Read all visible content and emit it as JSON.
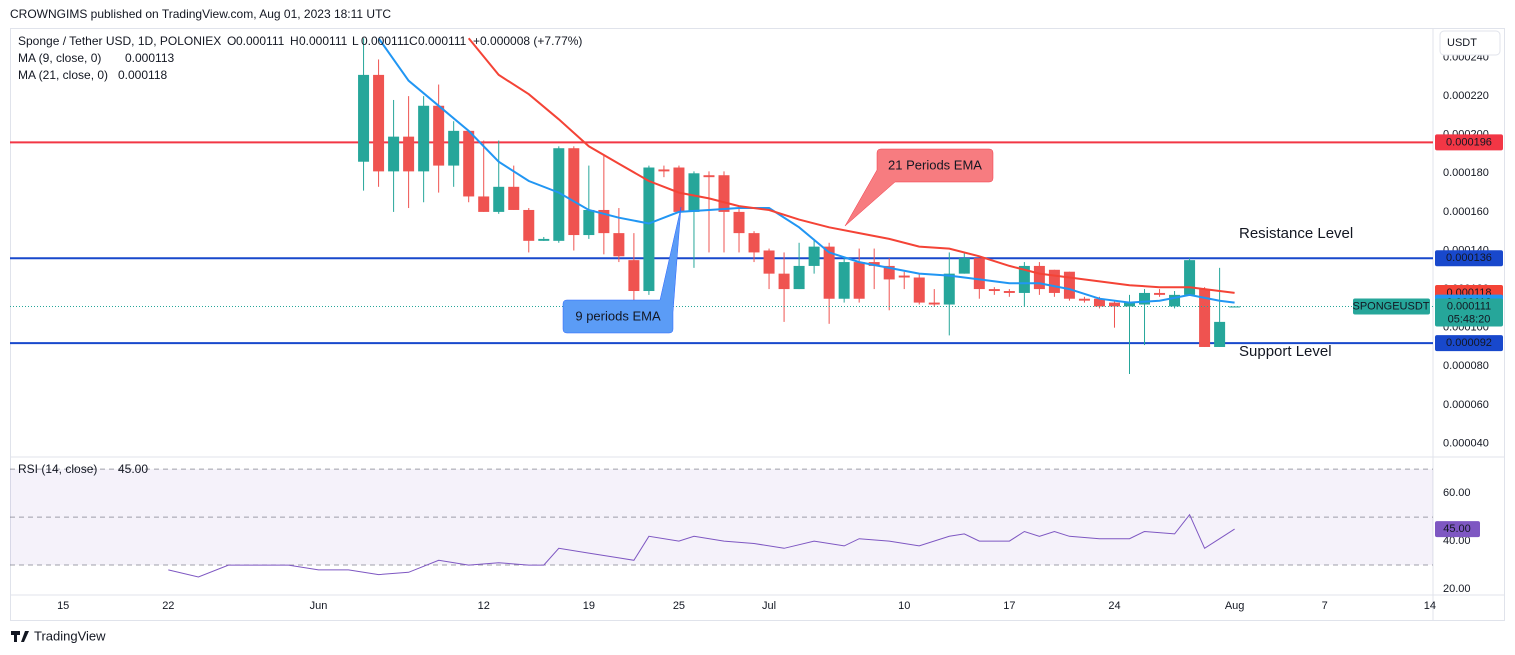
{
  "header": "CROWNGIMS published on TradingView.com, Aug 01, 2023 18:11 UTC",
  "footer": "TradingView",
  "currency_button": "USDT",
  "chart_data": [
    {
      "type": "candlestick",
      "title": "Sponge / Tether USD, 1D, POLONIEX",
      "ohlc_letters": [
        "O",
        "H",
        "L",
        "C"
      ],
      "change": "+0.000008 (+7.77%)",
      "up_color": "#26a69a",
      "down_color": "#ef5350",
      "x": [
        "2023-06-04",
        "2023-06-05",
        "2023-06-06",
        "2023-06-07",
        "2023-06-08",
        "2023-06-09",
        "2023-06-10",
        "2023-06-11",
        "2023-06-12",
        "2023-06-13",
        "2023-06-14",
        "2023-06-15",
        "2023-06-16",
        "2023-06-17",
        "2023-06-18",
        "2023-06-19",
        "2023-06-20",
        "2023-06-21",
        "2023-06-22",
        "2023-06-23",
        "2023-06-24",
        "2023-06-25",
        "2023-06-26",
        "2023-06-27",
        "2023-06-28",
        "2023-06-29",
        "2023-06-30",
        "2023-07-01",
        "2023-07-02",
        "2023-07-03",
        "2023-07-04",
        "2023-07-05",
        "2023-07-06",
        "2023-07-07",
        "2023-07-08",
        "2023-07-09",
        "2023-07-10",
        "2023-07-11",
        "2023-07-12",
        "2023-07-13",
        "2023-07-14",
        "2023-07-15",
        "2023-07-16",
        "2023-07-17",
        "2023-07-18",
        "2023-07-19",
        "2023-07-20",
        "2023-07-21",
        "2023-07-22",
        "2023-07-23",
        "2023-07-24",
        "2023-07-25",
        "2023-07-26",
        "2023-07-27",
        "2023-07-28",
        "2023-07-29",
        "2023-07-30",
        "2023-07-31",
        "2023-08-01"
      ],
      "open": [
        0.000186,
        0.000231,
        0.000181,
        0.000199,
        0.000181,
        0.000215,
        0.000184,
        0.000202,
        0.000168,
        0.00016,
        0.000173,
        0.000161,
        0.000145,
        0.000145,
        0.000193,
        0.000148,
        0.000161,
        0.000149,
        0.000135,
        0.000119,
        0.000182,
        0.000183,
        0.00016,
        0.000179,
        0.000179,
        0.00016,
        0.000149,
        0.00014,
        0.000128,
        0.00012,
        0.000132,
        0.000142,
        0.000115,
        0.000134,
        0.000134,
        0.000132,
        0.000127,
        0.000126,
        0.000113,
        0.000112,
        0.000128,
        0.000136,
        0.00012,
        0.000119,
        0.000118,
        0.000132,
        0.00013,
        0.000129,
        0.000115,
        0.000115,
        0.000113,
        0.000111,
        0.000112,
        0.000118,
        0.000111,
        0.000117,
        0.00012,
        9e-05,
        0.000111
      ],
      "high": [
        0.00025,
        0.000239,
        0.000218,
        0.00022,
        0.00022,
        0.000226,
        0.000207,
        0.000202,
        0.000197,
        0.000197,
        0.000184,
        0.000162,
        0.000147,
        0.000194,
        0.000194,
        0.000184,
        0.000189,
        0.000162,
        0.000149,
        0.000184,
        0.000184,
        0.000184,
        0.000181,
        0.000181,
        0.000181,
        0.000162,
        0.00015,
        0.000141,
        0.000139,
        0.000144,
        0.000146,
        0.000144,
        0.000136,
        0.000141,
        0.000141,
        0.000136,
        0.000129,
        0.000128,
        0.00012,
        0.000139,
        0.000139,
        0.000136,
        0.000121,
        0.00012,
        0.000134,
        0.000134,
        0.00013,
        0.000129,
        0.000116,
        0.000116,
        0.000114,
        0.000117,
        0.00012,
        0.00012,
        0.000119,
        0.000136,
        0.000121,
        0.000131,
        0.000111
      ],
      "low": [
        0.000171,
        0.000173,
        0.00016,
        0.000162,
        0.000165,
        0.00017,
        0.000173,
        0.000165,
        0.00016,
        0.000159,
        0.000161,
        0.000139,
        0.000145,
        0.000144,
        0.00014,
        0.000146,
        0.000138,
        0.000134,
        0.000113,
        0.000117,
        0.000178,
        0.00016,
        0.000131,
        0.000139,
        0.000139,
        0.000139,
        0.000134,
        0.00012,
        0.000103,
        0.00012,
        0.000128,
        0.000102,
        0.000113,
        0.000113,
        0.00012,
        0.000109,
        0.00012,
        0.000112,
        0.000111,
        9.6e-05,
        0.000128,
        0.000115,
        0.000117,
        0.000116,
        0.000111,
        0.000117,
        0.000116,
        0.000114,
        0.000113,
        0.00011,
        0.0001,
        7.6e-05,
        9.1e-05,
        0.000116,
        0.00011,
        0.000117,
        9e-05,
        9e-05,
        0.000111
      ],
      "close": [
        0.000231,
        0.000181,
        0.000199,
        0.000181,
        0.000215,
        0.000184,
        0.000202,
        0.000168,
        0.00016,
        0.000173,
        0.000161,
        0.000145,
        0.000146,
        0.000193,
        0.000148,
        0.000161,
        0.000149,
        0.000137,
        0.000119,
        0.000183,
        0.000181,
        0.00016,
        0.00018,
        0.000178,
        0.00016,
        0.000149,
        0.000139,
        0.000128,
        0.00012,
        0.000132,
        0.000142,
        0.000115,
        0.000134,
        0.000115,
        0.000132,
        0.000125,
        0.000126,
        0.000113,
        0.000112,
        0.000128,
        0.000136,
        0.00012,
        0.000119,
        0.000118,
        0.000132,
        0.00012,
        0.000118,
        0.000115,
        0.000114,
        0.000111,
        0.000111,
        0.000113,
        0.000118,
        0.000117,
        0.000117,
        0.000135,
        9e-05,
        0.000103,
        0.000111
      ],
      "series": [
        {
          "name": "MA (9, close, 0)",
          "color": "#2196f3",
          "x": [
            "2023-06-05",
            "2023-06-07",
            "2023-06-09",
            "2023-06-11",
            "2023-06-13",
            "2023-06-15",
            "2023-06-17",
            "2023-06-19",
            "2023-06-21",
            "2023-06-23",
            "2023-06-25",
            "2023-06-27",
            "2023-06-29",
            "2023-07-01",
            "2023-07-03",
            "2023-07-05",
            "2023-07-07",
            "2023-07-09",
            "2023-07-11",
            "2023-07-13",
            "2023-07-15",
            "2023-07-17",
            "2023-07-19",
            "2023-07-21",
            "2023-07-23",
            "2023-07-25",
            "2023-07-27",
            "2023-07-29",
            "2023-07-31",
            "2023-08-01"
          ],
          "values": [
            0.00025,
            0.000228,
            0.000215,
            0.000202,
            0.000186,
            0.000176,
            0.00017,
            0.000161,
            0.000157,
            0.000154,
            0.00016,
            0.000161,
            0.000162,
            0.000162,
            0.000152,
            0.000139,
            0.000134,
            0.000131,
            0.000128,
            0.000127,
            0.000125,
            0.000123,
            0.000123,
            0.00012,
            0.000115,
            0.000113,
            0.000114,
            0.000117,
            0.000114,
            0.000113
          ]
        },
        {
          "name": "MA (21, close, 0)",
          "color": "#f44336",
          "x": [
            "2023-06-11",
            "2023-06-13",
            "2023-06-15",
            "2023-06-17",
            "2023-06-19",
            "2023-06-21",
            "2023-06-23",
            "2023-06-25",
            "2023-06-27",
            "2023-06-29",
            "2023-07-01",
            "2023-07-03",
            "2023-07-05",
            "2023-07-07",
            "2023-07-09",
            "2023-07-11",
            "2023-07-13",
            "2023-07-15",
            "2023-07-17",
            "2023-07-19",
            "2023-07-21",
            "2023-07-23",
            "2023-07-25",
            "2023-07-27",
            "2023-07-29",
            "2023-07-31",
            "2023-08-01"
          ],
          "values": [
            0.00025,
            0.000231,
            0.000221,
            0.000208,
            0.000194,
            0.000185,
            0.000176,
            0.00017,
            0.000167,
            0.000163,
            0.000161,
            0.000156,
            0.000152,
            0.000149,
            0.000146,
            0.000142,
            0.000141,
            0.000137,
            0.000132,
            0.000128,
            0.000126,
            0.000124,
            0.000122,
            0.000121,
            0.000121,
            0.000119,
            0.000118
          ]
        }
      ],
      "hlines": [
        {
          "value": 0.000196,
          "color": "#f23645"
        },
        {
          "value": 0.000136,
          "color": "#1848cc"
        },
        {
          "value": 9.2e-05,
          "color": "#1848cc"
        }
      ],
      "last": {
        "symbol": "SPONGEUSDT",
        "countdown": "05:48:20",
        "color": "#26a69a"
      },
      "annotations": [
        {
          "text": "Resistance Level",
          "color": "#f23645"
        },
        {
          "text": "Support Level",
          "color": "#1848cc"
        },
        {
          "text": "21 Periods EMA",
          "color": "#f77c80"
        },
        {
          "text": "9 periods EMA",
          "color": "#5b9cf6"
        }
      ],
      "xlim": [
        "2023-05-11T11:00",
        "2023-08-14T05:00"
      ],
      "xticks": [
        {
          "value": "2023-05-15",
          "label": "15"
        },
        {
          "value": "2023-05-22",
          "label": "22"
        },
        {
          "value": "2023-06-01",
          "label": "Jun"
        },
        {
          "value": "2023-06-12",
          "label": "12"
        },
        {
          "value": "2023-06-19",
          "label": "19"
        },
        {
          "value": "2023-06-25",
          "label": "25"
        },
        {
          "value": "2023-07-01",
          "label": "Jul"
        },
        {
          "value": "2023-07-10",
          "label": "10"
        },
        {
          "value": "2023-07-17",
          "label": "17"
        },
        {
          "value": "2023-07-24",
          "label": "24"
        },
        {
          "value": "2023-08-01",
          "label": "Aug"
        },
        {
          "value": "2023-08-07",
          "label": "7"
        },
        {
          "value": "2023-08-14",
          "label": "14"
        }
      ],
      "ylim": [
        3.35e-05,
        0.0002553
      ],
      "yticks": [
        {
          "value": 4e-05,
          "label": "0.000040"
        },
        {
          "value": 6e-05,
          "label": "0.000060"
        },
        {
          "value": 8e-05,
          "label": "0.000080"
        },
        {
          "value": 0.0001,
          "label": "0.000100"
        },
        {
          "value": 0.00012,
          "label": "0.000120"
        },
        {
          "value": 0.00014,
          "label": "0.000140"
        },
        {
          "value": 0.00016,
          "label": "0.000160"
        },
        {
          "value": 0.00018,
          "label": "0.000180"
        },
        {
          "value": 0.0002,
          "label": "0.000200"
        },
        {
          "value": 0.00022,
          "label": "0.000220"
        },
        {
          "value": 0.00024,
          "label": "0.000240"
        }
      ]
    },
    {
      "type": "line",
      "series": [
        {
          "name": "RSI (14, close)",
          "color": "#7e57c2",
          "last_label": "45.00",
          "x": [
            "2023-05-22",
            "2023-05-24",
            "2023-05-26",
            "2023-05-28",
            "2023-05-30",
            "2023-06-01",
            "2023-06-03",
            "2023-06-05",
            "2023-06-07",
            "2023-06-09",
            "2023-06-11",
            "2023-06-13",
            "2023-06-15",
            "2023-06-16",
            "2023-06-17",
            "2023-06-19",
            "2023-06-21",
            "2023-06-22",
            "2023-06-23",
            "2023-06-25",
            "2023-06-26",
            "2023-06-28",
            "2023-06-30",
            "2023-07-02",
            "2023-07-04",
            "2023-07-06",
            "2023-07-07",
            "2023-07-09",
            "2023-07-11",
            "2023-07-13",
            "2023-07-14",
            "2023-07-15",
            "2023-07-17",
            "2023-07-18",
            "2023-07-19",
            "2023-07-20",
            "2023-07-21",
            "2023-07-23",
            "2023-07-25",
            "2023-07-26",
            "2023-07-28",
            "2023-07-29",
            "2023-07-30",
            "2023-07-31",
            "2023-08-01"
          ],
          "values": [
            28,
            25,
            30,
            30,
            30,
            28,
            28,
            26,
            27,
            32,
            30,
            31,
            30,
            30,
            37,
            35,
            33,
            32,
            42,
            40,
            42,
            40,
            39,
            37,
            40,
            38,
            41,
            40,
            38,
            42,
            43,
            40,
            40,
            44,
            42,
            44,
            42,
            41,
            41,
            44,
            43,
            51,
            37,
            41,
            45
          ]
        }
      ],
      "levels": [
        30,
        50,
        70
      ],
      "ylim": [
        19.6,
        73.8
      ],
      "yticks": [
        {
          "value": 20,
          "label": "20.00"
        },
        {
          "value": 40,
          "label": "40.00"
        },
        {
          "value": 60,
          "label": "60.00"
        }
      ]
    }
  ]
}
